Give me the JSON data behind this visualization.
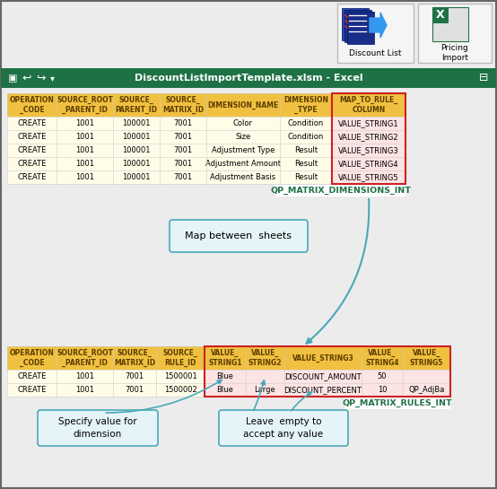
{
  "bg_color": "#ececec",
  "outer_border_color": "#555555",
  "excel_bar_color": "#1e7145",
  "excel_bar_text": "DiscountListImportTemplate.xlsm - Excel",
  "excel_bar_text_color": "#ffffff",
  "table1_header_bg": "#f0c040",
  "table1_header_text_color": "#5c3d00",
  "table1_row_bg": "#fffde8",
  "table1_row_text_color": "#000000",
  "table1_label": "QP_MATRIX_DIMENSIONS_INT",
  "table1_label_color": "#1e7145",
  "table2_header_bg": "#f0c040",
  "table2_header_text_color": "#5c3d00",
  "table2_row_bg": "#fffde8",
  "table2_row_text_color": "#000000",
  "table2_label": "QP_MATRIX_RULES_INT",
  "table2_label_color": "#1e7145",
  "table1_cols": [
    "OPERATION\n_CODE",
    "SOURCE_ROOT\n_PARENT_ID",
    "SOURCE_\nPARENT_ID",
    "SOURCE_\nMATRIX_ID",
    "DIMENSION_NAME",
    "DIMENSION\n_TYPE",
    "MAP_TO_RULE_\nCOLUMN"
  ],
  "table1_col_widths": [
    55,
    63,
    52,
    52,
    82,
    58,
    82
  ],
  "table1_rows": [
    [
      "CREATE",
      "1001",
      "100001",
      "7001",
      "Color",
      "Condition",
      "VALUE_STRING1"
    ],
    [
      "CREATE",
      "1001",
      "100001",
      "7001",
      "Size",
      "Condition",
      "VALUE_STRING2"
    ],
    [
      "CREATE",
      "1001",
      "100001",
      "7001",
      "Adjustment Type",
      "Result",
      "VALUE_STRING3"
    ],
    [
      "CREATE",
      "1001",
      "100001",
      "7001",
      "Adjustment Amount",
      "Result",
      "VALUE_STRING4"
    ],
    [
      "CREATE",
      "1001",
      "100001",
      "7001",
      "Adjustment Basis",
      "Result",
      "VALUE_STRING5"
    ]
  ],
  "table2_cols": [
    "OPERATION\n_CODE",
    "SOURCE_ROOT\n_PARENT_ID",
    "SOURCE_\nMATRIX_ID",
    "SOURCE_\nRULE_ID",
    "VALUE_\nSTRING1",
    "VALUE_\nSTRING2",
    "VALUE_STRING3",
    "VALUE_\nSTRING4",
    "VALUE_\nSTRING5"
  ],
  "table2_col_widths": [
    55,
    63,
    48,
    54,
    46,
    43,
    86,
    46,
    53
  ],
  "table2_rows": [
    [
      "CREATE",
      "1001",
      "7001",
      "1500001",
      "Blue",
      "",
      "DISCOUNT_AMOUNT",
      "50",
      ""
    ],
    [
      "CREATE",
      "1001",
      "7001",
      "1500002",
      "Blue",
      "Large",
      "DISCOUNT_PERCENT",
      "10",
      "QP_AdjBa"
    ]
  ],
  "annotation1_text": "Map between  sheets",
  "annotation2_text": "Specify value for\ndimension",
  "annotation3_text": "Leave  empty to\naccept any value",
  "arrow_color": "#4aa8b8",
  "callout_border_color": "#4aa8b8",
  "callout_bg": "#e4f4f8"
}
